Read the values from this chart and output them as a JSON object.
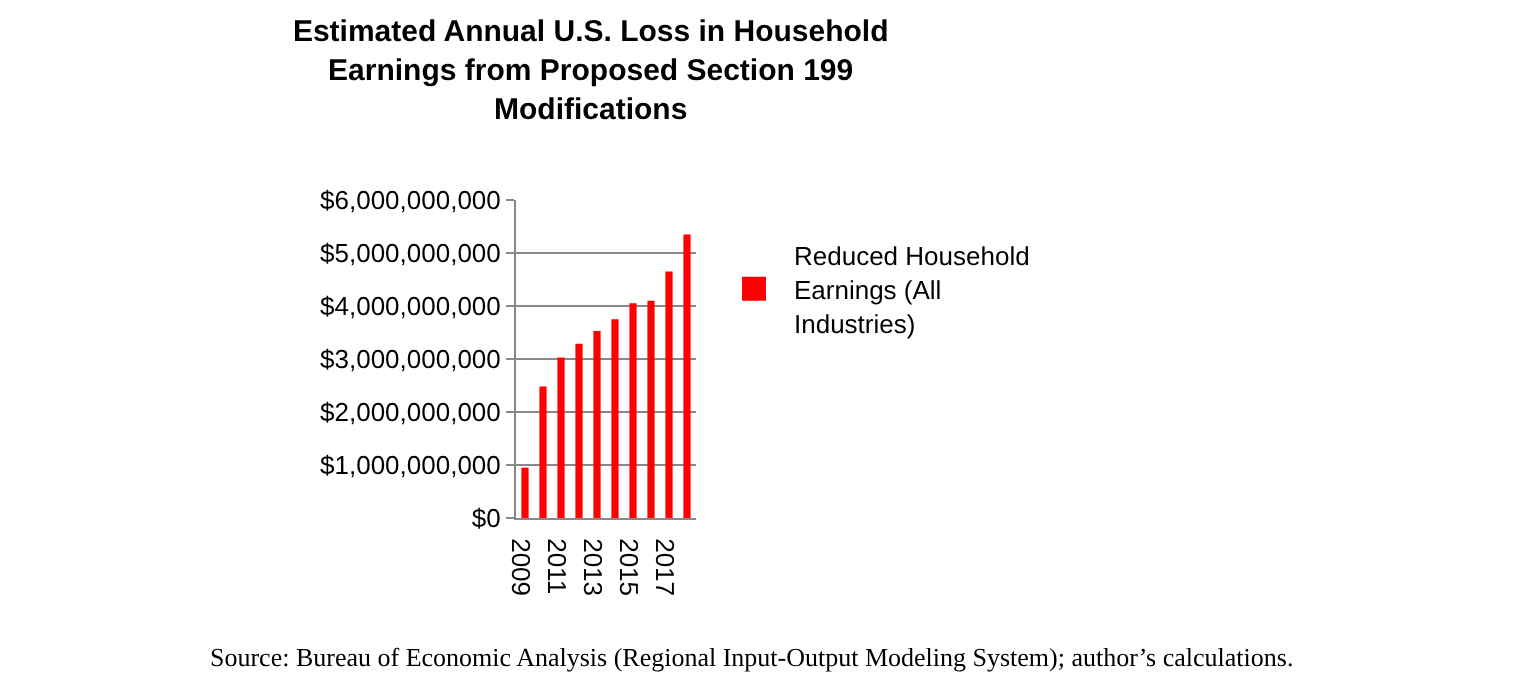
{
  "chart_data": {
    "type": "bar",
    "title": "Estimated Annual U.S. Loss in Household Earnings from Proposed Section 199 Modifications",
    "categories": [
      "2009",
      null,
      "2011",
      null,
      "2013",
      null,
      "2015",
      null,
      "2017",
      null
    ],
    "series": [
      {
        "name": "Reduced Household Earnings (All Industries)",
        "color": "#ff0000",
        "values": [
          950000000,
          2480000000,
          3030000000,
          3290000000,
          3530000000,
          3750000000,
          4050000000,
          4100000000,
          4650000000,
          5350000000
        ]
      }
    ],
    "ylim": [
      0,
      6000000000
    ],
    "yticks": [
      {
        "value": 0,
        "label": "$0"
      },
      {
        "value": 1000000000,
        "label": "$1,000,000,000"
      },
      {
        "value": 2000000000,
        "label": "$2,000,000,000"
      },
      {
        "value": 3000000000,
        "label": "$3,000,000,000"
      },
      {
        "value": 4000000000,
        "label": "$4,000,000,000"
      },
      {
        "value": 5000000000,
        "label": "$5,000,000,000"
      },
      {
        "value": 6000000000,
        "label": "$6,000,000,000"
      }
    ],
    "grid": "y",
    "legend": "right",
    "annotations": [
      "Source: Bureau of Economic Analysis (Regional Input-Output Modeling System); author’s calculations."
    ]
  }
}
